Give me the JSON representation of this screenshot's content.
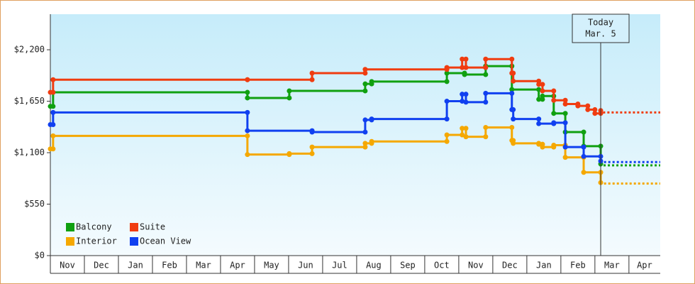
{
  "chart_data": {
    "type": "step-line",
    "categories": [
      "Nov",
      "Dec",
      "Jan",
      "Feb",
      "Mar",
      "Apr",
      "May",
      "Jun",
      "Jul",
      "Aug",
      "Sep",
      "Oct",
      "Nov",
      "Dec",
      "Jan",
      "Feb",
      "Mar",
      "Apr"
    ],
    "xlim": [
      0,
      17.92
    ],
    "ylim": [
      0,
      2580
    ],
    "yticks": [
      {
        "value": 0,
        "label": "$0"
      },
      {
        "value": 550,
        "label": "$550"
      },
      {
        "value": 1100,
        "label": "$1,100"
      },
      {
        "value": 1650,
        "label": "$1,650"
      },
      {
        "value": 2200,
        "label": "$2,200"
      }
    ],
    "legend": "lower left",
    "today": {
      "x": 16.17,
      "label": [
        "Today",
        "Mar. 5"
      ]
    },
    "series": [
      {
        "name": "Balcony",
        "color": "#10a010",
        "x": [
          0,
          0.08,
          5.79,
          7.02,
          9.25,
          9.44,
          11.65,
          12.17,
          12.79,
          13.56,
          14.35,
          14.46,
          14.79,
          15.13,
          15.67,
          16.17
        ],
        "values": [
          1595,
          1745,
          1685,
          1760,
          1835,
          1860,
          1950,
          1935,
          2025,
          1775,
          1670,
          1705,
          1520,
          1320,
          1170,
          980
        ],
        "projection": 965
      },
      {
        "name": "Suite",
        "color": "#f03c10",
        "x": [
          0,
          0.08,
          5.79,
          7.69,
          9.25,
          11.65,
          12.1,
          12.21,
          12.79,
          13.56,
          13.6,
          14.35,
          14.46,
          14.79,
          15.13,
          15.5,
          15.79,
          16.0,
          16.17
        ],
        "values": [
          1745,
          1880,
          1880,
          1950,
          1990,
          2010,
          2100,
          2010,
          2100,
          1950,
          1865,
          1830,
          1760,
          1660,
          1620,
          1600,
          1560,
          1520,
          1550
        ],
        "projection": 1530
      },
      {
        "name": "Interior",
        "color": "#f5a800",
        "x": [
          0,
          0.08,
          5.79,
          7.02,
          7.69,
          9.25,
          9.44,
          11.65,
          12.1,
          12.21,
          12.79,
          13.56,
          13.6,
          14.35,
          14.46,
          14.79,
          15.13,
          15.67,
          16.17
        ],
        "values": [
          1140,
          1280,
          1080,
          1090,
          1160,
          1200,
          1220,
          1290,
          1360,
          1270,
          1370,
          1230,
          1200,
          1190,
          1160,
          1180,
          1050,
          890,
          780
        ],
        "projection": 770
      },
      {
        "name": "Ocean View",
        "color": "#1040f0",
        "x": [
          0,
          0.08,
          5.79,
          7.69,
          9.25,
          9.44,
          11.65,
          12.1,
          12.21,
          12.79,
          13.56,
          13.6,
          14.35,
          14.79,
          15.13,
          15.67,
          16.17
        ],
        "values": [
          1400,
          1530,
          1335,
          1320,
          1450,
          1460,
          1650,
          1725,
          1640,
          1735,
          1560,
          1460,
          1410,
          1420,
          1160,
          1060,
          1010
        ],
        "projection": 1000
      }
    ]
  }
}
